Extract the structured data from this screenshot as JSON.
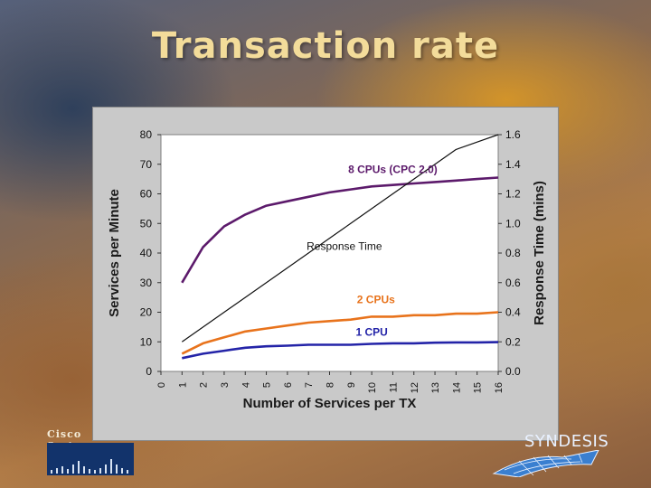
{
  "slide": {
    "title": "Transaction rate"
  },
  "logos": {
    "left": "Cisco Systems",
    "right": "SYNDESIS"
  },
  "chart_data": {
    "type": "line",
    "title": "",
    "xlabel": "Number of Services per TX",
    "ylabel": "Services per Minute",
    "y2label": "Response Time  (mins)",
    "x_ticks": [
      0,
      1,
      2,
      3,
      4,
      5,
      6,
      7,
      8,
      9,
      10,
      11,
      12,
      13,
      14,
      15,
      16
    ],
    "y_ticks": [
      0,
      10,
      20,
      30,
      40,
      50,
      60,
      70,
      80
    ],
    "y2_ticks": [
      "0.0",
      "0.2",
      "0.4",
      "0.6",
      "0.8",
      "1.0",
      "1.2",
      "1.4",
      "1.6"
    ],
    "xlim": [
      0,
      16
    ],
    "ylim": [
      0,
      80
    ],
    "y2lim": [
      0,
      1.6
    ],
    "grid": false,
    "x": [
      1,
      2,
      3,
      4,
      5,
      6,
      7,
      8,
      9,
      10,
      11,
      12,
      13,
      14,
      15,
      16
    ],
    "series": [
      {
        "name": "8 CPUs (CPC 2.0)",
        "color": "#5c1a6b",
        "axis": "left",
        "values": [
          30,
          42,
          49,
          53,
          56,
          57.5,
          59,
          60.5,
          61.5,
          62.5,
          63,
          63.5,
          64,
          64.5,
          65,
          65.5
        ]
      },
      {
        "name": "2 CPUs",
        "color": "#e8731c",
        "axis": "left",
        "values": [
          6,
          9.5,
          11.5,
          13.5,
          14.5,
          15.5,
          16.5,
          17,
          17.5,
          18.5,
          18.5,
          19,
          19,
          19.5,
          19.5,
          20
        ]
      },
      {
        "name": "1 CPU",
        "color": "#2424a8",
        "axis": "left",
        "values": [
          4.5,
          6,
          7,
          8,
          8.5,
          8.7,
          9,
          9,
          9,
          9.3,
          9.5,
          9.5,
          9.7,
          9.8,
          9.8,
          9.9
        ]
      },
      {
        "name": "Response Time",
        "color": "#111111",
        "axis": "right",
        "values": [
          0.2,
          0.3,
          0.4,
          0.5,
          0.6,
          0.7,
          0.8,
          0.9,
          1.0,
          1.1,
          1.2,
          1.3,
          1.4,
          1.5,
          1.55,
          1.6
        ]
      }
    ],
    "labels": [
      {
        "text": "8 CPUs  (CPC 2.0)",
        "series": "8 CPUs (CPC 2.0)",
        "at_x": 11,
        "at_y": 67,
        "color": "#5c1a6b"
      },
      {
        "text": "Response Time",
        "series": "Response Time",
        "at_x": 8.7,
        "at_y": 41,
        "color": "#111111"
      },
      {
        "text": "2 CPUs",
        "series": "2 CPUs",
        "at_x": 10.2,
        "at_y": 23,
        "color": "#e8731c"
      },
      {
        "text": "1 CPU",
        "series": "1 CPU",
        "at_x": 10,
        "at_y": 12,
        "color": "#2424a8"
      }
    ]
  }
}
